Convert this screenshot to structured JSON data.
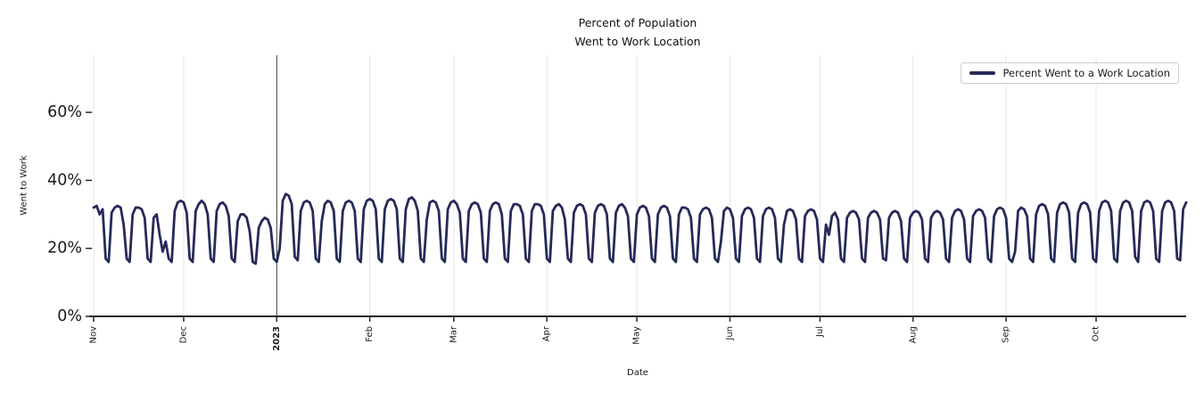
{
  "title": {
    "line1": "Percent of Population",
    "line2": "Went to Work Location"
  },
  "legend": {
    "label": "Percent Went to a Work Location"
  },
  "axes": {
    "x_label": "Date",
    "y_label": "Went to Work",
    "y_ticks": [
      {
        "label": "0%",
        "value": 0
      },
      {
        "label": "20%",
        "value": 20
      },
      {
        "label": "40%",
        "value": 40
      },
      {
        "label": "60%",
        "value": 60
      }
    ],
    "x_ticks": [
      {
        "label": "Nov",
        "day_index": 0,
        "bold": false
      },
      {
        "label": "Dec",
        "day_index": 30,
        "bold": false
      },
      {
        "label": "2023",
        "day_index": 61,
        "bold": true
      },
      {
        "label": "Feb",
        "day_index": 92,
        "bold": false
      },
      {
        "label": "Mar",
        "day_index": 120,
        "bold": false
      },
      {
        "label": "Apr",
        "day_index": 151,
        "bold": false
      },
      {
        "label": "May",
        "day_index": 181,
        "bold": false
      },
      {
        "label": "Jun",
        "day_index": 212,
        "bold": false
      },
      {
        "label": "Jul",
        "day_index": 242,
        "bold": false
      },
      {
        "label": "Aug",
        "day_index": 273,
        "bold": false
      },
      {
        "label": "Sep",
        "day_index": 304,
        "bold": false
      },
      {
        "label": "Oct",
        "day_index": 334,
        "bold": false
      }
    ],
    "ylim": [
      0,
      76.8
    ],
    "grid": "vertical-only"
  },
  "chart_data": {
    "type": "line",
    "series_name": "Percent Went to a Work Location",
    "x_unit": "date",
    "start_date": "2022-11-01",
    "end_date": "2023-10-31",
    "frequency": "daily",
    "year_boundary": {
      "label": "2023",
      "day_index": 61
    },
    "values": [
      32,
      32.5,
      30,
      31.5,
      17,
      16,
      30.5,
      32,
      32.5,
      32,
      27,
      17,
      16,
      30,
      32,
      32,
      31.5,
      29,
      17,
      16,
      29,
      30,
      24,
      19,
      22,
      17,
      16,
      31,
      33.5,
      34,
      33.5,
      30.5,
      17,
      16,
      31,
      33,
      34,
      33,
      30,
      17,
      16,
      31,
      33,
      33.5,
      32.5,
      29.5,
      17,
      16,
      28,
      30,
      30,
      29,
      25,
      16,
      15.5,
      26,
      28,
      29,
      28.5,
      26,
      17,
      16,
      20,
      34,
      36,
      35.5,
      33,
      17.5,
      16.5,
      31,
      33.5,
      34,
      33.5,
      31,
      17,
      16,
      28,
      33,
      34,
      33.5,
      31,
      17,
      16,
      31,
      33.5,
      34,
      33.5,
      31,
      17,
      16,
      31.5,
      34,
      34.5,
      34,
      31.5,
      17,
      16,
      31.5,
      34,
      34.5,
      34,
      31.5,
      17,
      16,
      31.5,
      34.5,
      35,
      34,
      31,
      17,
      16,
      28.5,
      33.5,
      34,
      33.5,
      31,
      17,
      16,
      31.5,
      33.5,
      34,
      33,
      30.5,
      17,
      16,
      31,
      33,
      33.5,
      33,
      30.5,
      17,
      16,
      31,
      33,
      33.5,
      33,
      30,
      17,
      16,
      31,
      33,
      33,
      32.5,
      30,
      17,
      16,
      31,
      33,
      33,
      32.5,
      30,
      17,
      16,
      31,
      32.5,
      33,
      32,
      28.5,
      17,
      16,
      30.5,
      32.5,
      33,
      32.5,
      30,
      17,
      16,
      30.5,
      32.5,
      33,
      32.5,
      30,
      17,
      16,
      30.5,
      32.5,
      33,
      32,
      29.5,
      17,
      16,
      30,
      32,
      32.5,
      32,
      29.5,
      17,
      16,
      30,
      32,
      32.5,
      32,
      29.5,
      17,
      16,
      30,
      32,
      32,
      31.5,
      29,
      17,
      16,
      30,
      31.5,
      32,
      31.5,
      29,
      17,
      16,
      22,
      31,
      32,
      31.5,
      29,
      17,
      16,
      29.5,
      31.5,
      32,
      31.5,
      29,
      17,
      16,
      29.5,
      31.5,
      32,
      31.5,
      29,
      17,
      16,
      27,
      31,
      31.5,
      31,
      28.5,
      17,
      16,
      29.5,
      31,
      31.5,
      31,
      28.5,
      17,
      16,
      27,
      24,
      29.5,
      30.5,
      28.5,
      17,
      16,
      29,
      30.5,
      31,
      30.5,
      28.5,
      17,
      16,
      29,
      30.5,
      31,
      30.5,
      28.5,
      17,
      16.5,
      29,
      30.5,
      31,
      30.5,
      28,
      17,
      16,
      29,
      30.5,
      31,
      30.5,
      28.5,
      17,
      16,
      29,
      30.5,
      31,
      30.5,
      28.5,
      17,
      16,
      29,
      31,
      31.5,
      31,
      28.5,
      17,
      16,
      29.5,
      31,
      31.5,
      31,
      29,
      17,
      16,
      29.5,
      31.5,
      32,
      31.5,
      29,
      17,
      16,
      19,
      31,
      32,
      31.5,
      29.5,
      17,
      16,
      30,
      32.5,
      33,
      32.5,
      30,
      17,
      16,
      30.5,
      33,
      33.5,
      33,
      30.5,
      17,
      16,
      30.5,
      33,
      33.5,
      33,
      30.5,
      17,
      16,
      31,
      33.5,
      34,
      33.5,
      31,
      17,
      16,
      31,
      33.5,
      34,
      33.5,
      31,
      17.5,
      16,
      31,
      33.5,
      34,
      33.5,
      31,
      17,
      16,
      31,
      33.5,
      34,
      33.5,
      31,
      17,
      16.5,
      31.5,
      33.5
    ]
  },
  "colors": {
    "line": "#252a58",
    "grid": "#e7e7e7",
    "year_line": "#3d3d3d",
    "axis": "#262626",
    "text": "#1a1a1a",
    "legend_border": "#cccccc"
  }
}
